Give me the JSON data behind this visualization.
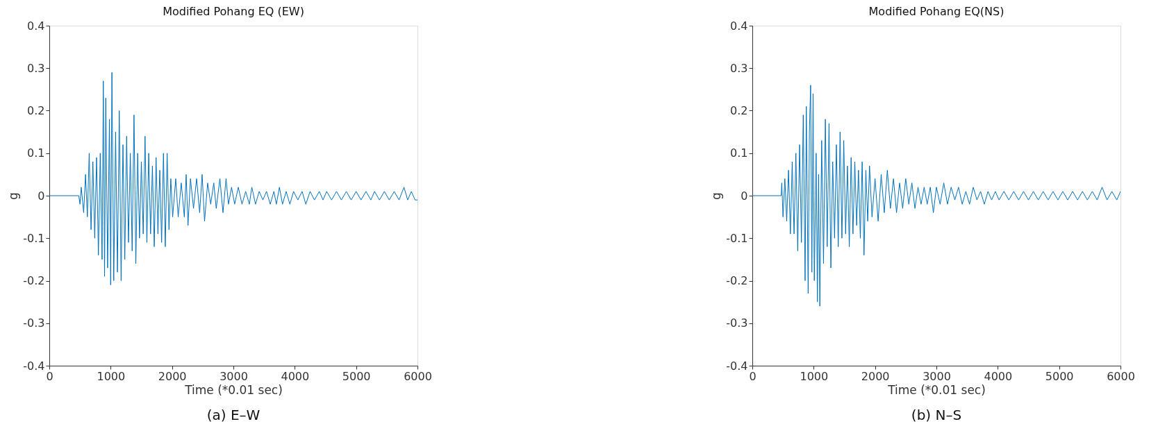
{
  "chart_data": [
    {
      "type": "line",
      "title": "Modified Pohang EQ (EW)",
      "xlabel": "Time (*0.01 sec)",
      "ylabel": "g",
      "annotations": [
        "(a) E–W"
      ],
      "xlim": [
        0,
        6000
      ],
      "ylim": [
        -0.4,
        0.4
      ],
      "xticks": [
        0,
        1000,
        2000,
        3000,
        4000,
        5000,
        6000
      ],
      "yticks": [
        -0.4,
        -0.3,
        -0.2,
        -0.1,
        0,
        0.1,
        0.2,
        0.3,
        0.4
      ],
      "x": [
        0,
        480,
        500,
        520,
        560,
        590,
        620,
        650,
        680,
        710,
        740,
        770,
        800,
        830,
        860,
        880,
        900,
        920,
        950,
        980,
        1000,
        1020,
        1050,
        1080,
        1110,
        1140,
        1170,
        1200,
        1230,
        1260,
        1290,
        1320,
        1350,
        1380,
        1410,
        1440,
        1470,
        1500,
        1530,
        1560,
        1590,
        1620,
        1650,
        1680,
        1710,
        1740,
        1770,
        1800,
        1830,
        1860,
        1890,
        1920,
        1950,
        1980,
        2010,
        2060,
        2100,
        2150,
        2200,
        2230,
        2260,
        2300,
        2350,
        2400,
        2450,
        2490,
        2530,
        2580,
        2630,
        2680,
        2720,
        2780,
        2830,
        2880,
        2920,
        2970,
        3020,
        3080,
        3140,
        3200,
        3260,
        3300,
        3360,
        3420,
        3480,
        3540,
        3600,
        3660,
        3700,
        3750,
        3800,
        3860,
        3920,
        3980,
        4050,
        4120,
        4180,
        4250,
        4320,
        4400,
        4460,
        4520,
        4600,
        4680,
        4760,
        4840,
        4920,
        5000,
        5080,
        5160,
        5240,
        5300,
        5380,
        5460,
        5540,
        5620,
        5700,
        5780,
        5840,
        5900,
        5960,
        6000
      ],
      "series": [
        {
          "color": "#0072bd",
          "values": [
            0,
            0,
            -0.02,
            0.02,
            -0.04,
            0.05,
            -0.05,
            0.1,
            -0.08,
            0.08,
            -0.1,
            0.09,
            -0.14,
            0.1,
            -0.15,
            0.27,
            -0.19,
            0.23,
            -0.17,
            0.18,
            -0.21,
            0.29,
            -0.2,
            0.15,
            -0.18,
            0.2,
            -0.2,
            0.12,
            -0.15,
            0.14,
            -0.11,
            0.1,
            -0.13,
            0.19,
            -0.16,
            0.1,
            -0.1,
            0.08,
            -0.09,
            0.14,
            -0.11,
            0.1,
            -0.09,
            0.07,
            -0.12,
            0.09,
            -0.09,
            0.06,
            -0.11,
            0.1,
            -0.12,
            0.1,
            -0.08,
            0.04,
            -0.05,
            0.04,
            -0.05,
            0.03,
            -0.05,
            0.05,
            -0.07,
            0.04,
            -0.03,
            0.04,
            -0.04,
            0.05,
            -0.06,
            0.03,
            -0.02,
            0.03,
            -0.03,
            0.04,
            -0.04,
            0.04,
            -0.02,
            0.02,
            -0.02,
            0.02,
            -0.02,
            0.01,
            -0.02,
            0.02,
            -0.02,
            0.01,
            -0.01,
            0.01,
            -0.02,
            0.01,
            -0.02,
            0.02,
            -0.02,
            0.01,
            -0.02,
            0.01,
            -0.01,
            0.01,
            -0.02,
            0.01,
            -0.01,
            0.01,
            -0.01,
            0.01,
            -0.01,
            0.01,
            -0.01,
            0.01,
            -0.01,
            0.01,
            -0.01,
            0.01,
            -0.01,
            0.01,
            -0.01,
            0.01,
            -0.01,
            0.01,
            -0.01,
            0.02,
            -0.01,
            0.01,
            -0.01,
            -0.01
          ]
        }
      ]
    },
    {
      "type": "line",
      "title": "Modified Pohang EQ(NS)",
      "xlabel": "Time (*0.01 sec)",
      "ylabel": "g",
      "annotations": [
        "(b) N–S"
      ],
      "xlim": [
        0,
        6000
      ],
      "ylim": [
        -0.4,
        0.4
      ],
      "xticks": [
        0,
        1000,
        2000,
        3000,
        4000,
        5000,
        6000
      ],
      "yticks": [
        -0.4,
        -0.3,
        -0.2,
        -0.1,
        0,
        0.1,
        0.2,
        0.3,
        0.4
      ],
      "x": [
        0,
        470,
        480,
        500,
        530,
        560,
        590,
        620,
        650,
        680,
        710,
        740,
        770,
        800,
        830,
        860,
        880,
        910,
        930,
        950,
        970,
        990,
        1010,
        1040,
        1060,
        1080,
        1100,
        1130,
        1160,
        1190,
        1220,
        1250,
        1280,
        1310,
        1340,
        1370,
        1400,
        1430,
        1460,
        1490,
        1520,
        1550,
        1580,
        1610,
        1640,
        1670,
        1700,
        1730,
        1760,
        1790,
        1820,
        1850,
        1880,
        1910,
        1950,
        2000,
        2050,
        2100,
        2150,
        2200,
        2250,
        2300,
        2350,
        2400,
        2450,
        2500,
        2550,
        2600,
        2650,
        2700,
        2750,
        2800,
        2850,
        2900,
        2950,
        3000,
        3060,
        3120,
        3180,
        3240,
        3300,
        3360,
        3420,
        3480,
        3540,
        3600,
        3660,
        3720,
        3780,
        3840,
        3900,
        3960,
        4020,
        4100,
        4180,
        4260,
        4340,
        4420,
        4500,
        4580,
        4660,
        4740,
        4820,
        4900,
        4980,
        5060,
        5140,
        5220,
        5300,
        5380,
        5460,
        5540,
        5620,
        5700,
        5780,
        5860,
        5940,
        6000
      ],
      "series": [
        {
          "color": "#0072bd",
          "values": [
            0,
            0,
            0.03,
            -0.05,
            0.04,
            -0.06,
            0.06,
            -0.09,
            0.08,
            -0.09,
            0.1,
            -0.13,
            0.12,
            -0.11,
            0.19,
            -0.2,
            0.21,
            -0.23,
            0.15,
            0.26,
            -0.18,
            0.24,
            -0.2,
            0.1,
            -0.25,
            0.05,
            -0.26,
            0.13,
            -0.16,
            0.18,
            -0.12,
            0.17,
            -0.17,
            0.08,
            -0.1,
            0.12,
            -0.12,
            0.15,
            -0.1,
            0.13,
            -0.09,
            0.07,
            -0.12,
            0.09,
            -0.09,
            0.08,
            -0.07,
            0.06,
            -0.1,
            0.08,
            -0.14,
            0.06,
            -0.06,
            0.07,
            -0.05,
            0.04,
            -0.06,
            0.05,
            -0.04,
            0.06,
            -0.03,
            0.04,
            -0.04,
            0.03,
            -0.03,
            0.04,
            -0.02,
            0.03,
            -0.03,
            0.02,
            -0.02,
            0.02,
            -0.02,
            0.02,
            -0.04,
            0.02,
            -0.02,
            0.03,
            -0.02,
            0.02,
            -0.01,
            0.02,
            -0.02,
            0.01,
            -0.02,
            0.02,
            -0.01,
            0.01,
            -0.02,
            0.01,
            -0.01,
            0.01,
            -0.01,
            0.01,
            -0.01,
            0.01,
            -0.01,
            0.01,
            -0.01,
            0.01,
            -0.01,
            0.01,
            -0.01,
            0.01,
            -0.01,
            0.01,
            -0.01,
            0.01,
            -0.01,
            0.01,
            -0.01,
            0.01,
            -0.01,
            0.02,
            -0.01,
            0.01,
            -0.01,
            0.01
          ]
        }
      ]
    }
  ]
}
